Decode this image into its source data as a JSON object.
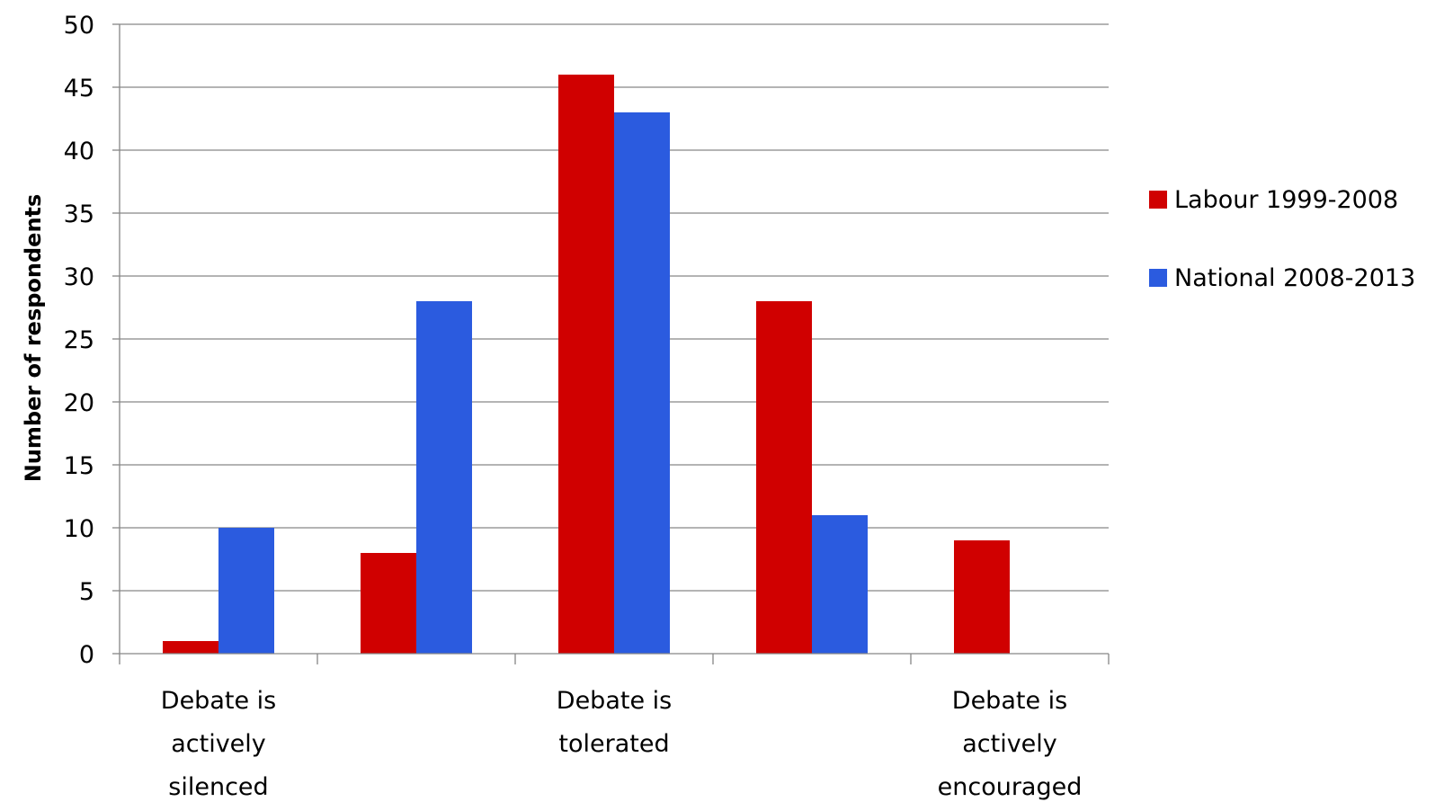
{
  "chart_data": {
    "type": "bar",
    "title": "",
    "xlabel": "",
    "ylabel": "Number of respondents",
    "ylim": [
      0,
      50
    ],
    "yticks": [
      0,
      5,
      10,
      15,
      20,
      25,
      30,
      35,
      40,
      45,
      50
    ],
    "grid": true,
    "legend_position": "right",
    "categories": [
      [
        "Debate is",
        "actively",
        "silenced"
      ],
      [],
      [
        "Debate is",
        "tolerated"
      ],
      [],
      [
        "Debate is",
        "actively",
        "encouraged"
      ]
    ],
    "series": [
      {
        "name": "Labour 1999-2008",
        "color": "#d00000",
        "values": [
          1,
          8,
          46,
          28,
          9
        ]
      },
      {
        "name": "National 2008-2013",
        "color": "#2b5bdf",
        "values": [
          10,
          28,
          43,
          11,
          0
        ]
      }
    ]
  }
}
